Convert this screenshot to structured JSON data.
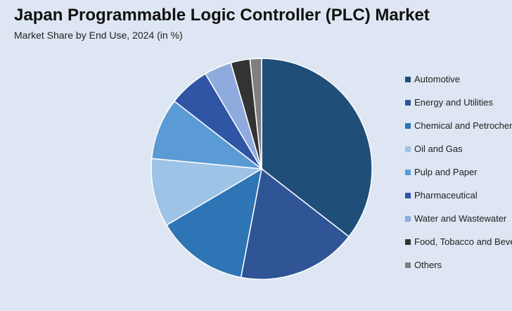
{
  "chart_data": {
    "type": "pie",
    "title": "Japan Programmable Logic Controller (PLC) Market",
    "subtitle": "Market Share by End Use, 2024 (in %)",
    "legend_position": "right",
    "slices": [
      {
        "label": "Automotive",
        "value": 35.5,
        "color": "#1f4e79"
      },
      {
        "label": "Energy and Utilities",
        "value": 17.5,
        "color": "#2f5597"
      },
      {
        "label": "Chemical and Petrochemical",
        "value": 13.5,
        "color": "#2e75b6"
      },
      {
        "label": "Oil and Gas",
        "value": 10.0,
        "color": "#9dc3e6"
      },
      {
        "label": "Pulp and Paper",
        "value": 9.0,
        "color": "#5b9bd5"
      },
      {
        "label": "Pharmaceutical",
        "value": 6.0,
        "color": "#2f55a4"
      },
      {
        "label": "Water and Wastewater",
        "value": 4.0,
        "color": "#8faadc"
      },
      {
        "label": "Food, Tobacco and Beverages",
        "value": 2.8,
        "color": "#333333"
      },
      {
        "label": "Others",
        "value": 1.7,
        "color": "#7f7f7f"
      }
    ]
  }
}
